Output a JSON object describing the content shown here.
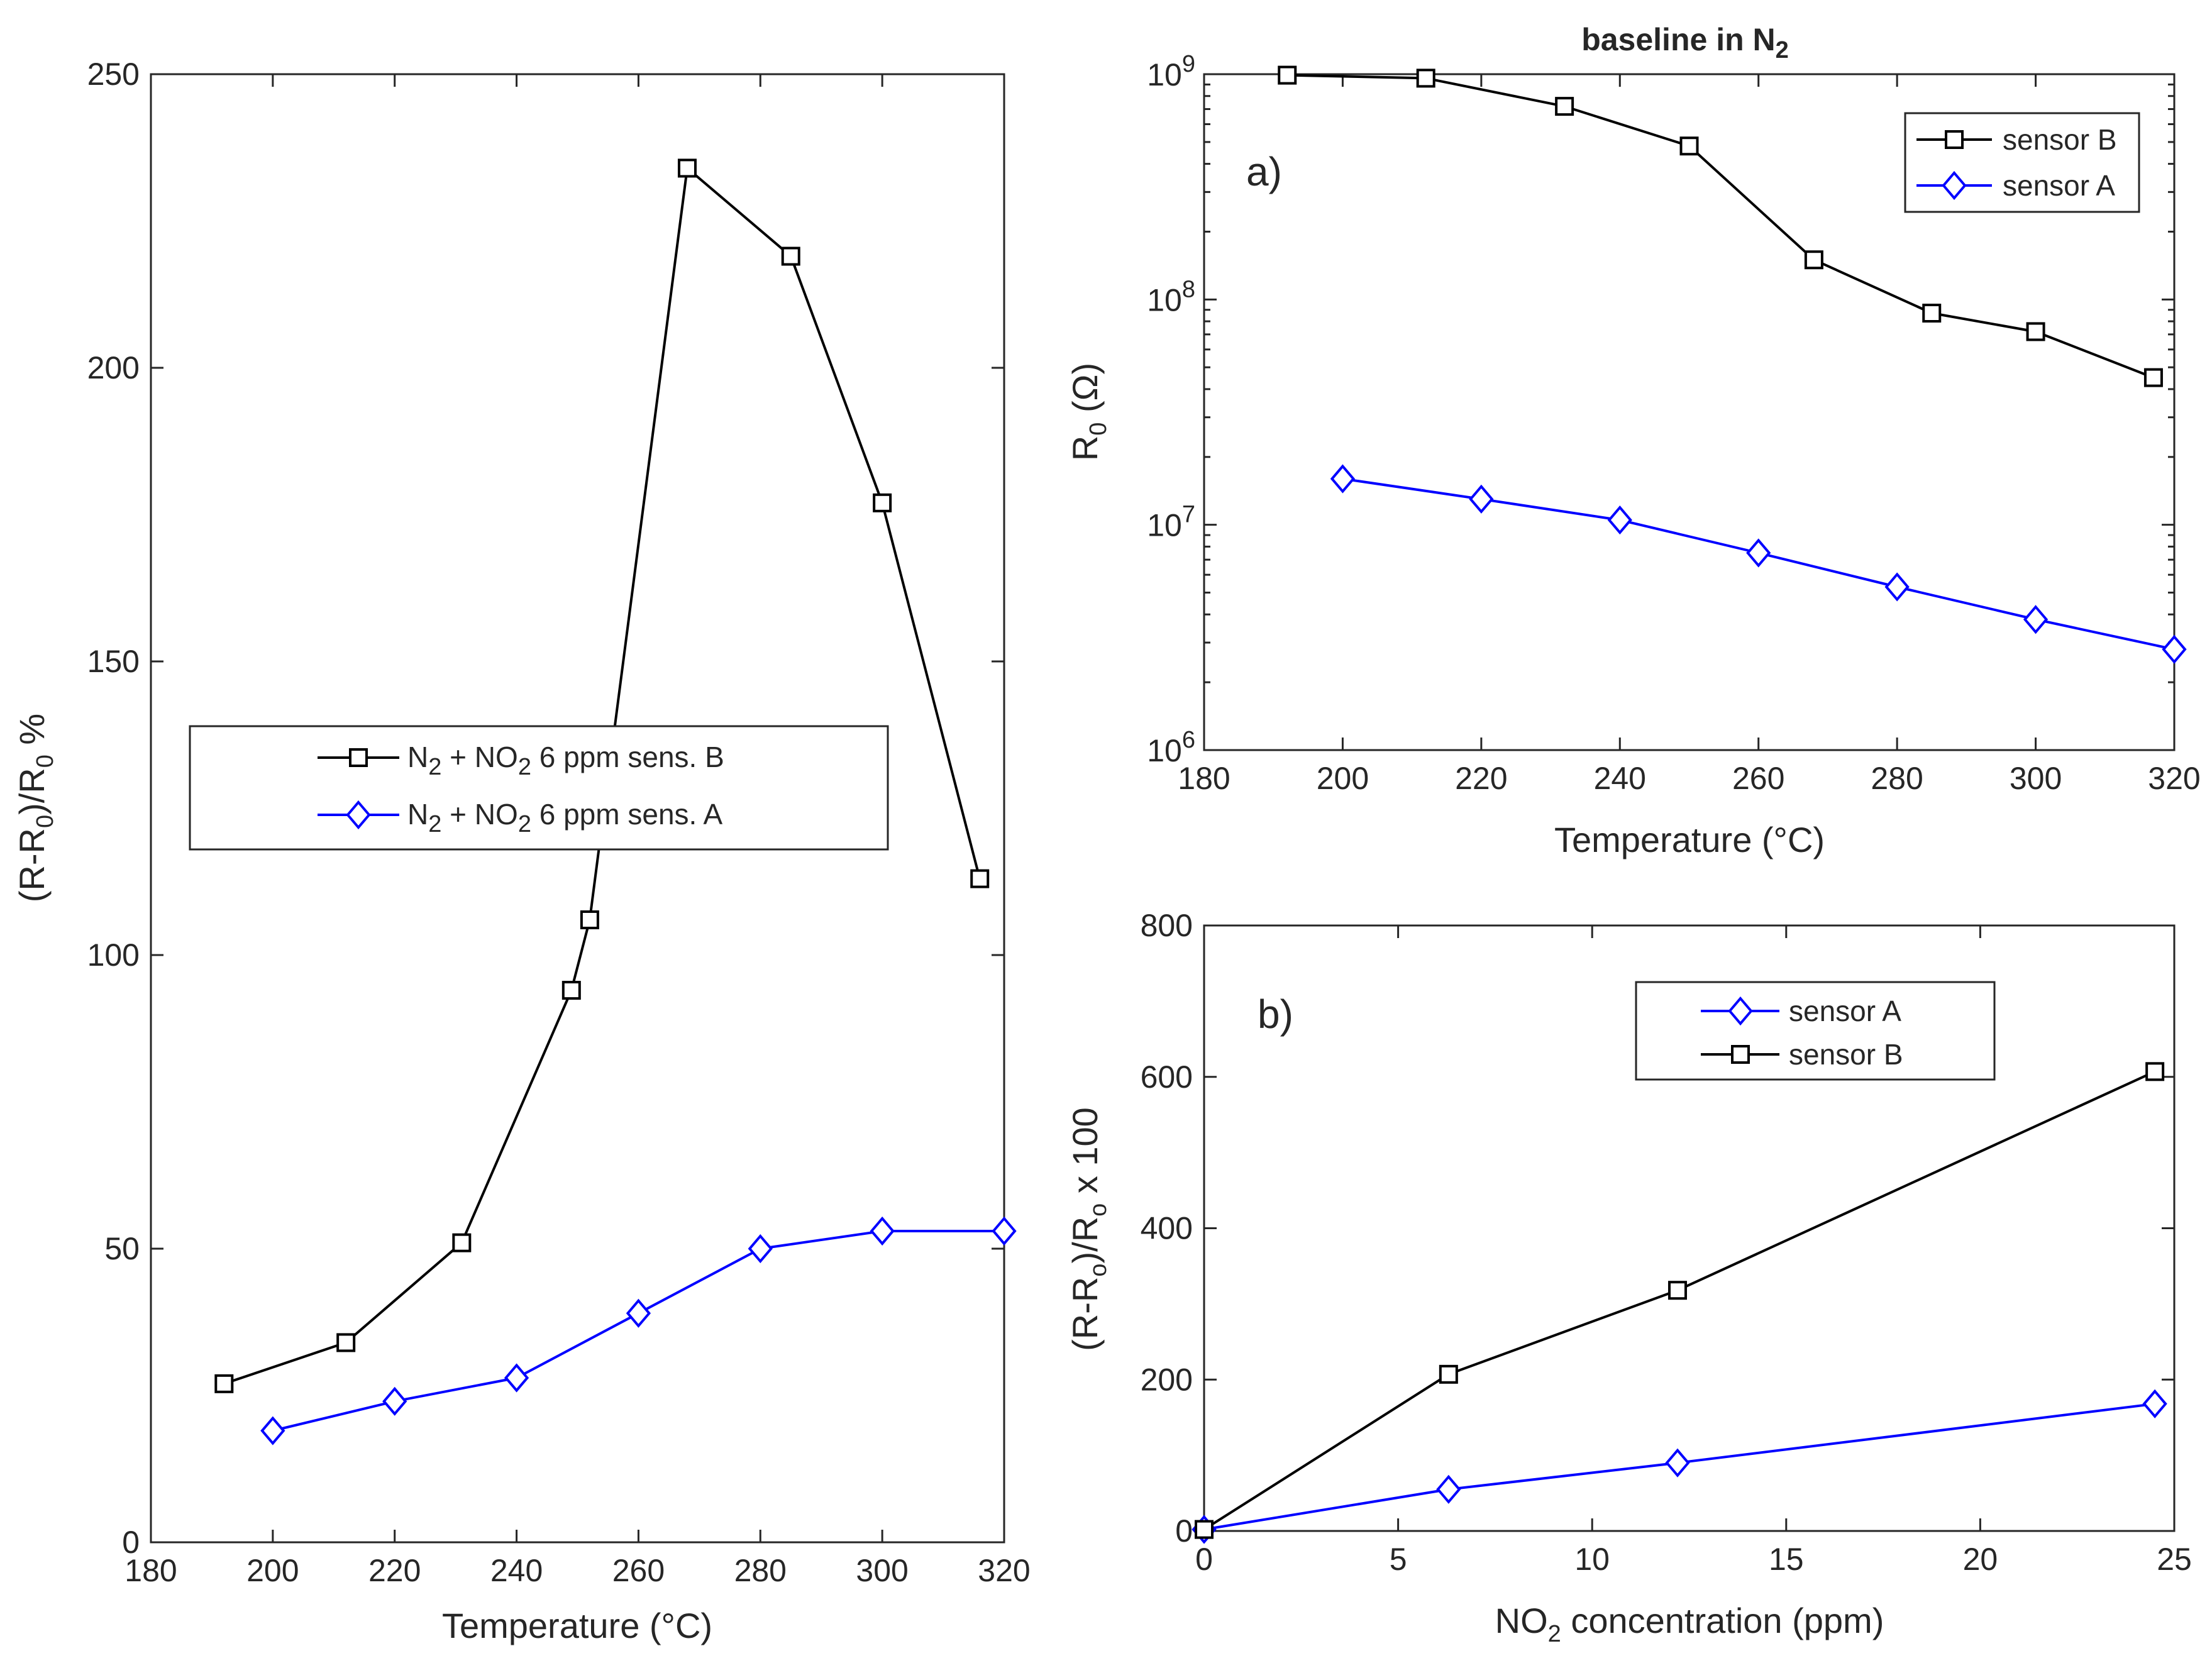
{
  "colors": {
    "sensor_b": "#000000",
    "sensor_a": "#0000ff",
    "axis": "#262626"
  },
  "chart_data": [
    {
      "id": "left",
      "type": "line",
      "title": "",
      "xlabel": "Temperature (°C)",
      "ylabel": {
        "base": "(R-R",
        "sub1": "0",
        "mid": ")/R",
        "sub2": "0",
        "tail": " %"
      },
      "xlim": [
        180,
        320
      ],
      "ylim": [
        0,
        250
      ],
      "xticks": [
        180,
        200,
        220,
        240,
        260,
        280,
        300,
        320
      ],
      "yticks": [
        0,
        50,
        100,
        150,
        200,
        250
      ],
      "yscale": "linear",
      "legend_placement": "center-left",
      "series": [
        {
          "name": "N2 + NO2 6 ppm sens. B",
          "label": {
            "a": "N",
            "a_sub": "2",
            "b": " + NO",
            "b_sub": "2",
            "c": " 6 ppm sens. B"
          },
          "marker": "square",
          "color": "#000000",
          "x": [
            192,
            212,
            231,
            249,
            252,
            268,
            285,
            300,
            316
          ],
          "y": [
            27,
            34,
            51,
            94,
            106,
            234,
            219,
            177,
            113
          ]
        },
        {
          "name": "N2 + NO2 6 ppm sens. A",
          "label": {
            "a": "N",
            "a_sub": "2",
            "b": " + NO",
            "b_sub": "2",
            "c": " 6 ppm sens. A"
          },
          "marker": "diamond",
          "color": "#0000ff",
          "x": [
            200,
            220,
            240,
            260,
            280,
            300,
            320
          ],
          "y": [
            19,
            24,
            28,
            39,
            50,
            53,
            53
          ]
        }
      ]
    },
    {
      "id": "a",
      "type": "line",
      "title": {
        "base": "baseline in N",
        "sub": "2"
      },
      "panel_label": "a)",
      "xlabel": "Temperature (°C)",
      "ylabel": {
        "base": "R",
        "sub": "0",
        "tail": " (Ω)"
      },
      "xlim": [
        180,
        320
      ],
      "ylim": [
        1000000,
        1000000000
      ],
      "xticks": [
        180,
        200,
        220,
        240,
        260,
        280,
        300,
        320
      ],
      "yscale": "log",
      "yticks": [
        {
          "value": 1000000,
          "base": "10",
          "exp": "6"
        },
        {
          "value": 10000000,
          "base": "10",
          "exp": "7"
        },
        {
          "value": 100000000,
          "base": "10",
          "exp": "8"
        },
        {
          "value": 1000000000,
          "base": "10",
          "exp": "9"
        }
      ],
      "legend_placement": "top-right",
      "series": [
        {
          "name": "sensor B",
          "marker": "square",
          "color": "#000000",
          "x": [
            192,
            212,
            232,
            250,
            268,
            285,
            300,
            317
          ],
          "y": [
            990000000,
            960000000,
            720000000,
            480000000,
            150000000,
            87000000,
            72000000,
            45000000
          ]
        },
        {
          "name": "sensor A",
          "marker": "diamond",
          "color": "#0000ff",
          "x": [
            200,
            220,
            240,
            260,
            280,
            300,
            320
          ],
          "y": [
            16000000,
            13000000,
            10500000,
            7500000,
            5300000,
            3800000,
            2800000
          ]
        }
      ]
    },
    {
      "id": "b",
      "type": "line",
      "title": "",
      "panel_label": "b)",
      "xlabel": {
        "base": "NO",
        "sub": "2",
        "tail": " concentration (ppm)"
      },
      "ylabel": {
        "base": "(R-R",
        "sub1": "o",
        "mid": ")/R",
        "sub2": "o",
        "tail": " x 100"
      },
      "xlim": [
        0,
        25
      ],
      "ylim": [
        0,
        800
      ],
      "xticks": [
        0,
        5,
        10,
        15,
        20,
        25
      ],
      "yticks": [
        0,
        200,
        400,
        600,
        800
      ],
      "yscale": "linear",
      "legend_placement": "top-center",
      "series": [
        {
          "name": "sensor A",
          "marker": "diamond",
          "color": "#0000ff",
          "x": [
            0,
            6.3,
            12.2,
            24.5
          ],
          "y": [
            2,
            55,
            90,
            168
          ]
        },
        {
          "name": "sensor B",
          "marker": "square",
          "color": "#000000",
          "x": [
            0,
            6.3,
            12.2,
            24.5
          ],
          "y": [
            2,
            207,
            318,
            607
          ]
        }
      ]
    }
  ]
}
